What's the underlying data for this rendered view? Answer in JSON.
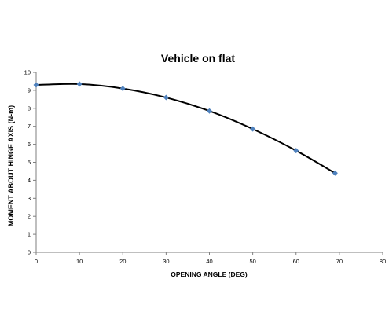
{
  "chart_data": {
    "type": "line",
    "title": "Vehicle on flat",
    "xlabel": "OPENING ANGLE (DEG)",
    "ylabel": "MOMENT ABOUT HINGE AXIS (N-m)",
    "xlim": [
      0,
      80
    ],
    "ylim": [
      0,
      10
    ],
    "xticks": [
      "0",
      "10",
      "20",
      "30",
      "40",
      "50",
      "60",
      "70",
      "80"
    ],
    "yticks": [
      "0",
      "1",
      "2",
      "3",
      "4",
      "5",
      "6",
      "7",
      "8",
      "9",
      "10"
    ],
    "grid": false,
    "legend": "none",
    "series": [
      {
        "x": [
          0,
          10,
          20,
          30,
          40,
          50,
          60,
          69
        ],
        "y": [
          9.3,
          9.35,
          9.1,
          8.6,
          7.85,
          6.85,
          5.65,
          4.4
        ],
        "line_color": "#000000",
        "marker_color": "#4f81bd",
        "marker": "diamond"
      }
    ]
  }
}
